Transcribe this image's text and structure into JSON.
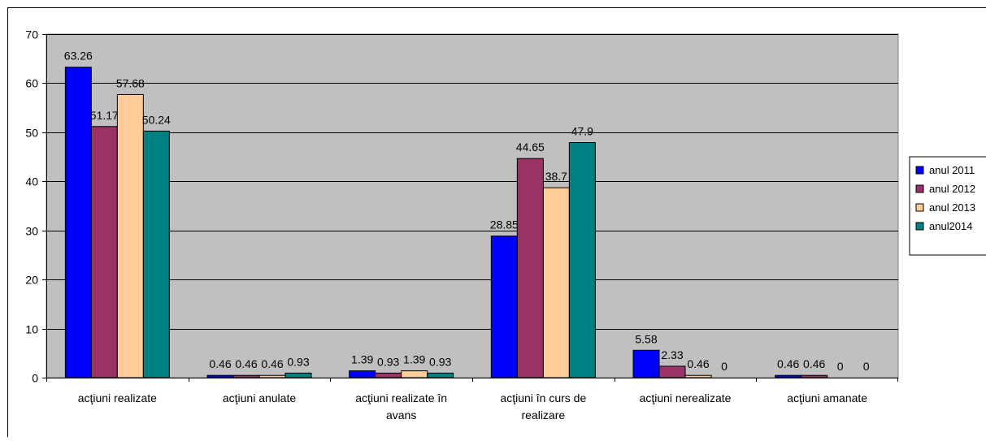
{
  "chart_data": {
    "type": "bar",
    "categories": [
      [
        "acţiuni realizate"
      ],
      [
        "acţiuni anulate"
      ],
      [
        "acţiuni realizate în",
        "avans"
      ],
      [
        "acţiuni în curs de",
        "realizare"
      ],
      [
        "acţiuni nerealizate"
      ],
      [
        "acţiuni amanate"
      ]
    ],
    "series": [
      {
        "name": "anul 2011",
        "color": "#0000ff",
        "values": [
          63.26,
          0.46,
          1.39,
          28.85,
          5.58,
          0.46
        ]
      },
      {
        "name": "anul 2012",
        "color": "#993366",
        "values": [
          51.17,
          0.46,
          0.93,
          44.65,
          2.33,
          0.46
        ]
      },
      {
        "name": "anul 2013",
        "color": "#ffcc99",
        "values": [
          57.68,
          0.46,
          1.39,
          38.7,
          0.46,
          0
        ]
      },
      {
        "name": "anul2014",
        "color": "#008080",
        "values": [
          50.24,
          0.93,
          0.93,
          47.9,
          0,
          0
        ]
      }
    ],
    "ylim": [
      0,
      70
    ],
    "yticks": [
      0,
      10,
      20,
      30,
      40,
      50,
      60,
      70
    ],
    "grid": true,
    "plot_background": "#c0c0c0",
    "legend_position": "right",
    "title": "",
    "xlabel": "",
    "ylabel": ""
  }
}
